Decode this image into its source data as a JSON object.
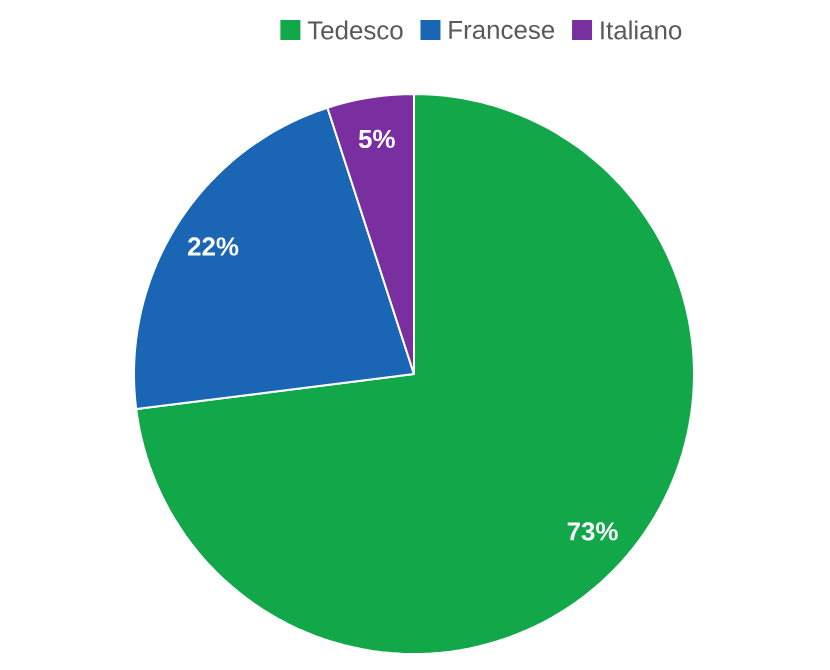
{
  "chart_data": {
    "type": "pie",
    "categories": [
      "Tedesco",
      "Francese",
      "Italiano"
    ],
    "values": [
      73,
      22,
      5
    ],
    "colors": [
      "#12a84a",
      "#1a66b5",
      "#7a2fa0"
    ],
    "legend": "top",
    "value_labels": [
      "73%",
      "22%",
      "5%"
    ]
  }
}
